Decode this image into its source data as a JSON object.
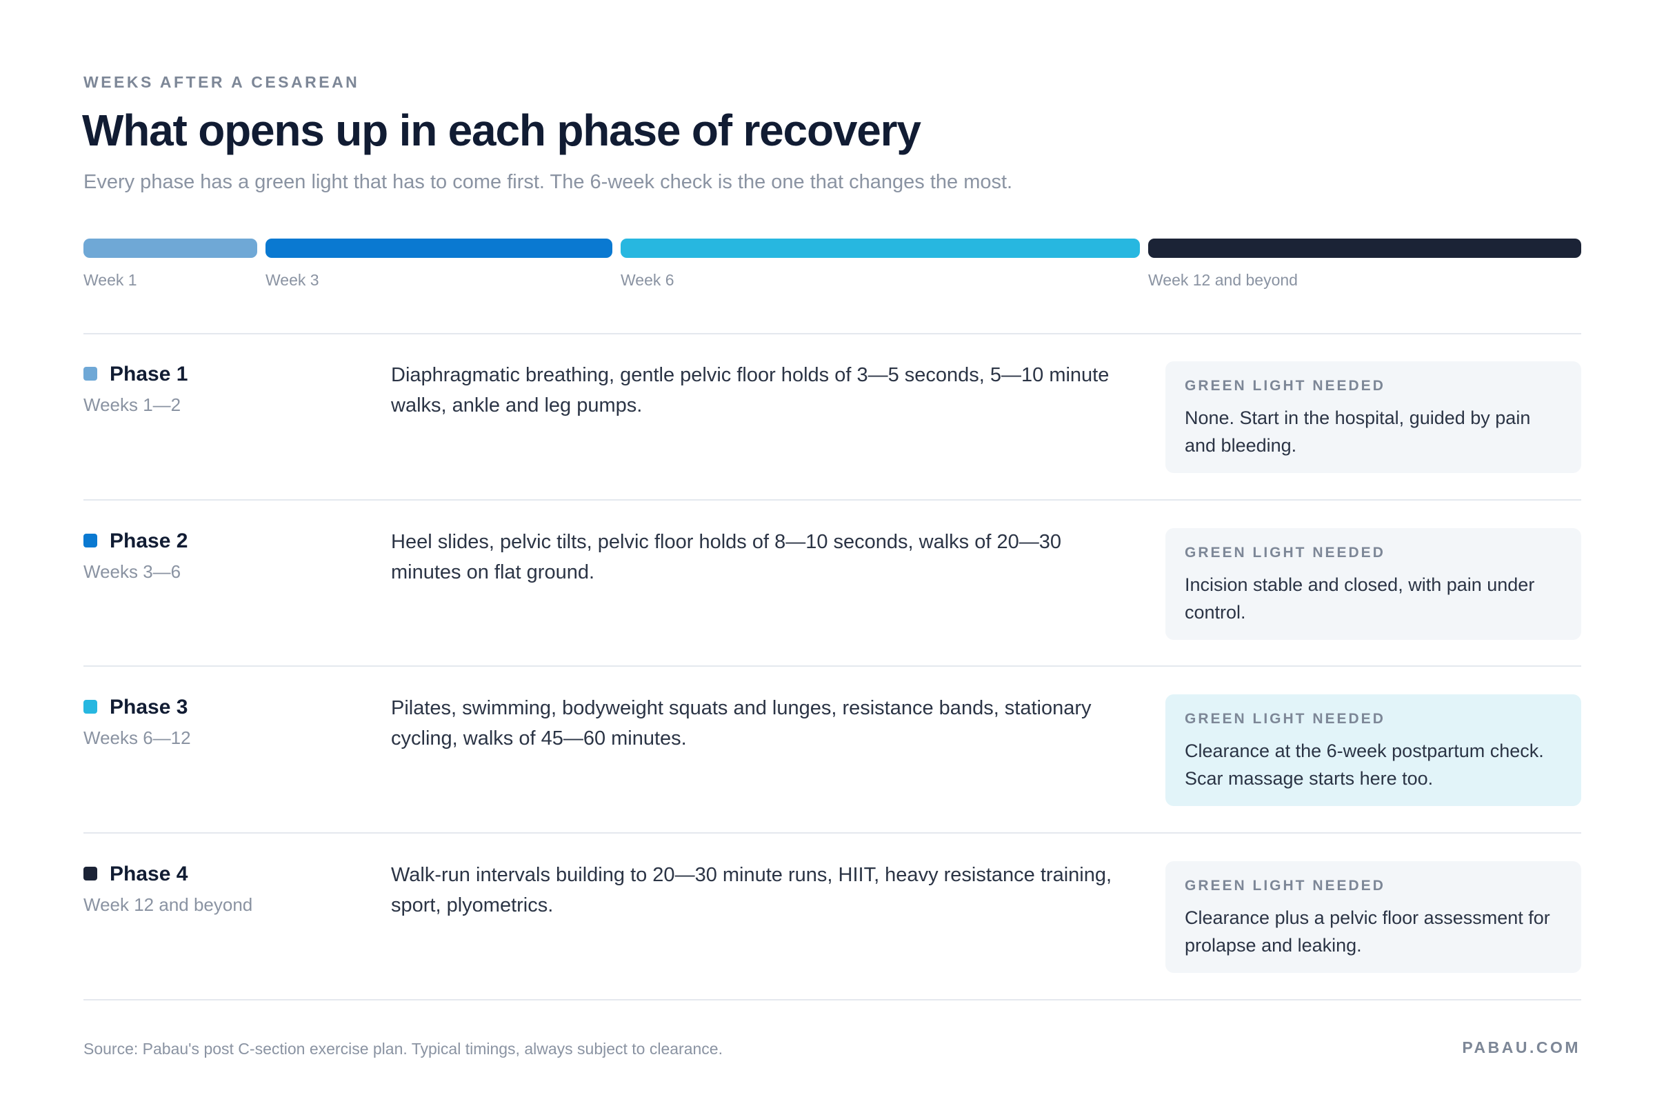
{
  "header": {
    "eyebrow": "WEEKS AFTER A CESAREAN",
    "title": "What opens up in each phase of recovery",
    "subtitle": "Every phase has a green light that has to come first. The 6-week check is the one that changes the most."
  },
  "timeline": {
    "segments": [
      {
        "label": "Week 1",
        "color": "#6fa8d6"
      },
      {
        "label": "Week 3",
        "color": "#0a79d1"
      },
      {
        "label": "Week 6",
        "color": "#27b7e0"
      },
      {
        "label": "Week 12 and beyond",
        "color": "#1b2336"
      }
    ]
  },
  "phases": [
    {
      "name": "Phase 1",
      "weeks": "Weeks 1—2",
      "color": "#6fa8d6",
      "activities": "Diaphragmatic breathing, gentle pelvic floor holds of 3—5 seconds, 5—10 minute walks, ankle and leg pumps.",
      "green_light_label": "GREEN LIGHT NEEDED",
      "green_light_text": "None. Start in the hospital, guided by pain and bleeding.",
      "highlight": false
    },
    {
      "name": "Phase 2",
      "weeks": "Weeks 3—6",
      "color": "#0a79d1",
      "activities": "Heel slides, pelvic tilts, pelvic floor holds of 8—10 seconds, walks of 20—30 minutes on flat ground.",
      "green_light_label": "GREEN LIGHT NEEDED",
      "green_light_text": "Incision stable and closed, with pain under control.",
      "highlight": false
    },
    {
      "name": "Phase 3",
      "weeks": "Weeks 6—12",
      "color": "#27b7e0",
      "activities": "Pilates, swimming, bodyweight squats and lunges, resistance bands, stationary cycling, walks of 45—60 minutes.",
      "green_light_label": "GREEN LIGHT NEEDED",
      "green_light_text": "Clearance at the 6-week postpartum check. Scar massage starts here too.",
      "highlight": true
    },
    {
      "name": "Phase 4",
      "weeks": "Week 12 and beyond",
      "color": "#1b2336",
      "activities": "Walk-run intervals building to 20—30 minute runs, HIIT, heavy resistance training, sport, plyometrics.",
      "green_light_label": "GREEN LIGHT NEEDED",
      "green_light_text": "Clearance plus a pelvic floor assessment for prolapse and leaking.",
      "highlight": false
    }
  ],
  "footer": {
    "source": "Source: Pabau's post C-section exercise plan. Typical timings, always subject to clearance.",
    "brand": "PABAU.COM"
  }
}
